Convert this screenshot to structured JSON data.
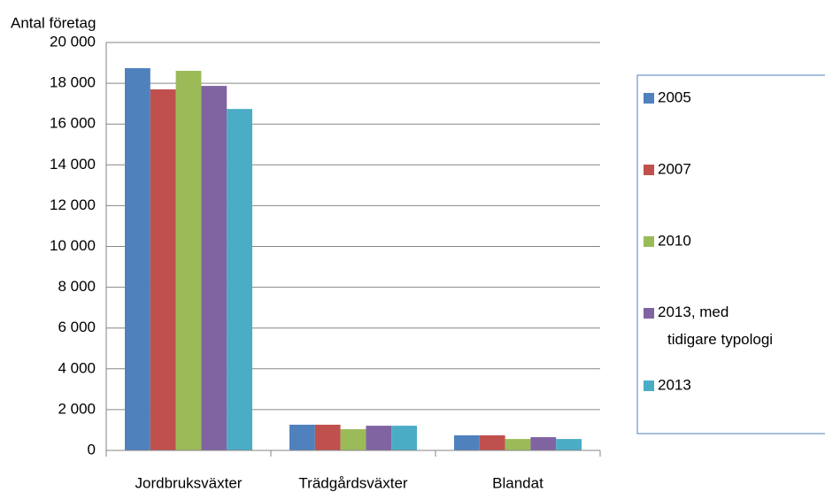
{
  "chart_data": {
    "type": "bar",
    "y_label": "Antal företag",
    "categories": [
      "Jordbruksväxter",
      "Trädgårdsväxter",
      "Blandat"
    ],
    "series": [
      {
        "name": "2005",
        "color": "#4f81bd",
        "values": [
          18740,
          1260,
          740
        ]
      },
      {
        "name": "2007",
        "color": "#c0504d",
        "values": [
          17700,
          1260,
          740
        ]
      },
      {
        "name": "2010",
        "color": "#9bbb59",
        "values": [
          18610,
          1040,
          560
        ]
      },
      {
        "name": "2013, med tidigare typologi",
        "color": "#8064a2",
        "values": [
          17870,
          1210,
          650
        ]
      },
      {
        "name": "2013",
        "color": "#4bacc6",
        "values": [
          16740,
          1210,
          560
        ]
      }
    ],
    "ylim": [
      0,
      20000
    ],
    "yticks": [
      0,
      {
        "value": 2000,
        "label": "2 000"
      },
      {
        "value": 4000,
        "label": "4 000"
      },
      {
        "value": 6000,
        "label": "6 000"
      },
      {
        "value": 8000,
        "label": "8 000"
      },
      {
        "value": 10000,
        "label": "10 000"
      },
      {
        "value": 12000,
        "label": "12 000"
      },
      {
        "value": 14000,
        "label": "14 000"
      },
      {
        "value": 16000,
        "label": "16 000"
      },
      {
        "value": 18000,
        "label": "18 000"
      },
      {
        "value": 20000,
        "label": "20 000"
      }
    ],
    "grid": true,
    "legend": "right"
  }
}
